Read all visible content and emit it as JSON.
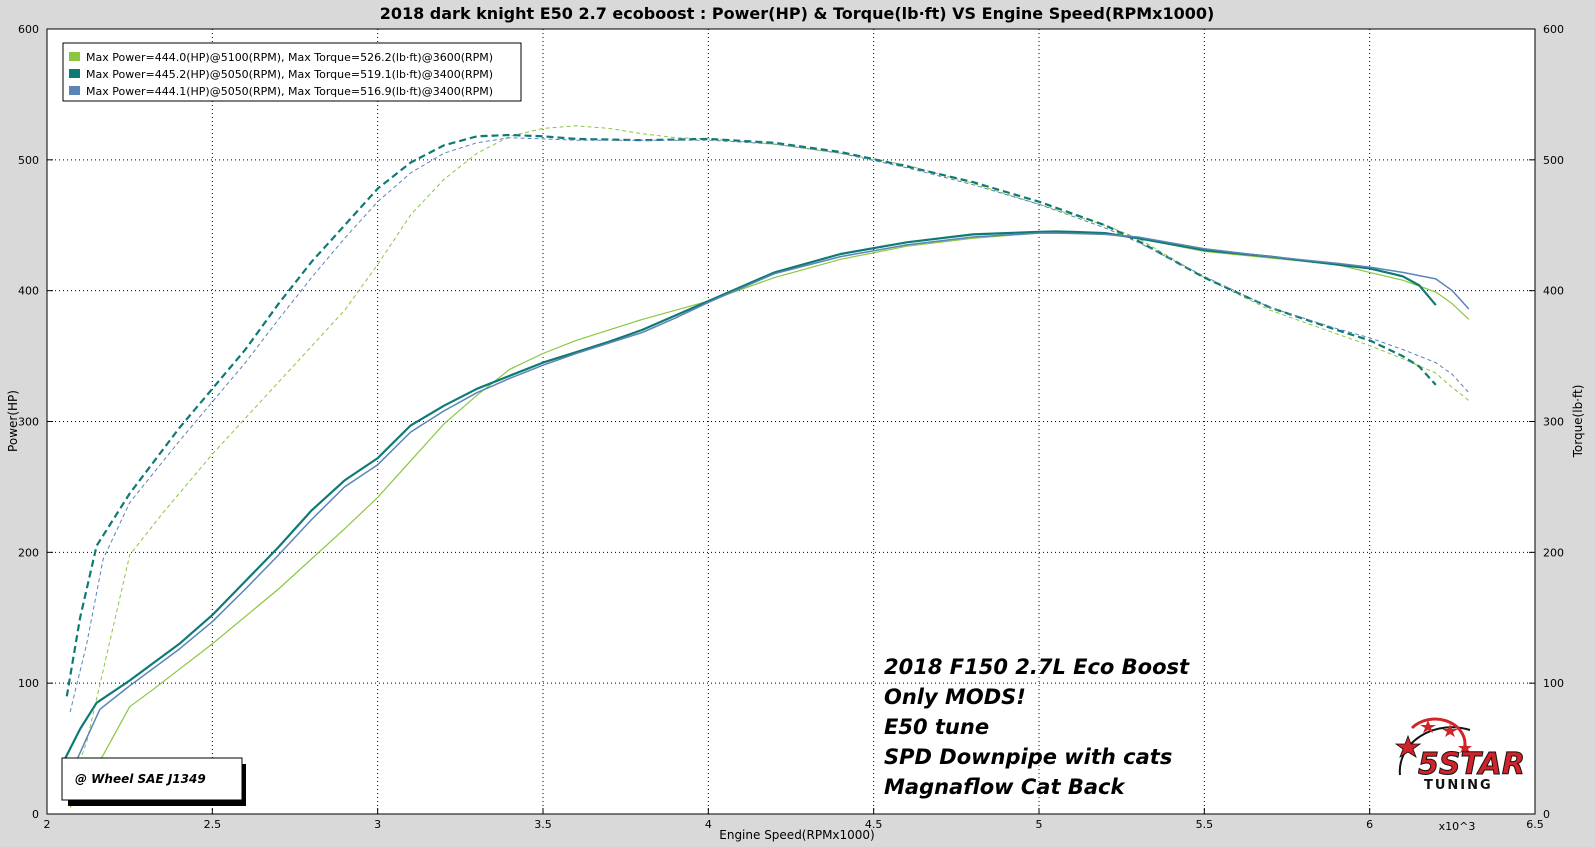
{
  "chart_data": {
    "type": "line",
    "title": "2018 dark knight E50 2.7 ecoboost : Power(HP) & Torque(lb·ft) VS Engine Speed(RPMx1000)",
    "xlabel": "Engine Speed(RPMx1000)",
    "x_multiplier_label": "x10^3",
    "ylabel_left": "Power(HP)",
    "ylabel_right": "Torque(lb·ft)",
    "xlim": [
      2,
      6.5
    ],
    "ylim": [
      0,
      600
    ],
    "x_ticks": [
      "2",
      "2.5",
      "3",
      "3.5",
      "4",
      "4.5",
      "5",
      "5.5",
      "6",
      "6.5"
    ],
    "y_ticks": [
      "0",
      "100",
      "200",
      "300",
      "400",
      "500",
      "600"
    ],
    "grid": true,
    "legend_position": "top-left",
    "series": [
      {
        "name": "Max Power=444.0(HP)@5100(RPM), Max Torque=526.2(lb·ft)@3600(RPM)",
        "color": "#8cc63f",
        "power": {
          "x": [
            2.07,
            2.12,
            2.17,
            2.25,
            2.32,
            2.5,
            2.7,
            2.9,
            3.0,
            3.1,
            3.2,
            3.3,
            3.4,
            3.5,
            3.6,
            3.7,
            3.8,
            3.9,
            4.0,
            4.2,
            4.4,
            4.6,
            4.8,
            5.0,
            5.1,
            5.2,
            5.3,
            5.5,
            5.7,
            5.9,
            6.0,
            6.1,
            6.2,
            6.25,
            6.3
          ],
          "y": [
            5,
            25,
            45,
            82,
            95,
            130,
            172,
            218,
            242,
            270,
            298,
            320,
            340,
            352,
            362,
            370,
            378,
            385,
            392,
            410,
            424,
            434,
            440,
            444,
            444,
            443,
            440,
            430,
            425,
            420,
            414,
            408,
            399,
            390,
            378
          ]
        },
        "torque": {
          "x": [
            2.07,
            2.12,
            2.17,
            2.25,
            2.35,
            2.5,
            2.7,
            2.9,
            3.0,
            3.1,
            3.2,
            3.3,
            3.4,
            3.5,
            3.6,
            3.7,
            3.8,
            3.9,
            4.0,
            4.2,
            4.4,
            4.6,
            4.8,
            5.0,
            5.2,
            5.3,
            5.5,
            5.7,
            5.9,
            6.0,
            6.1,
            6.2,
            6.25,
            6.3
          ],
          "y": [
            20,
            55,
            110,
            198,
            230,
            275,
            330,
            385,
            420,
            458,
            485,
            505,
            518,
            524,
            526,
            524,
            520,
            517,
            516,
            512,
            505,
            496,
            482,
            466,
            450,
            440,
            410,
            385,
            367,
            358,
            348,
            337,
            326,
            316
          ]
        }
      },
      {
        "name": "Max Power=445.2(HP)@5050(RPM), Max Torque=519.1(lb·ft)@3400(RPM)",
        "color": "#0e7a74",
        "power": {
          "x": [
            2.05,
            2.1,
            2.15,
            2.25,
            2.4,
            2.5,
            2.6,
            2.7,
            2.8,
            2.9,
            3.0,
            3.1,
            3.2,
            3.3,
            3.4,
            3.5,
            3.6,
            3.7,
            3.8,
            3.9,
            4.0,
            4.2,
            4.4,
            4.6,
            4.8,
            4.9,
            5.0,
            5.05,
            5.1,
            5.2,
            5.3,
            5.5,
            5.7,
            5.9,
            6.0,
            6.1,
            6.15,
            6.2
          ],
          "y": [
            40,
            65,
            85,
            102,
            130,
            152,
            178,
            204,
            232,
            255,
            272,
            297,
            312,
            325,
            335,
            345,
            353,
            361,
            370,
            381,
            392,
            414,
            428,
            437,
            443,
            444,
            445,
            445.2,
            445,
            444,
            440,
            431,
            426,
            420,
            417,
            411,
            404,
            389
          ]
        },
        "torque": {
          "x": [
            2.06,
            2.1,
            2.15,
            2.25,
            2.4,
            2.5,
            2.6,
            2.7,
            2.8,
            2.9,
            3.0,
            3.1,
            3.2,
            3.3,
            3.4,
            3.5,
            3.6,
            3.8,
            4.0,
            4.2,
            4.4,
            4.6,
            4.8,
            5.0,
            5.2,
            5.3,
            5.5,
            5.7,
            5.9,
            6.0,
            6.1,
            6.15,
            6.2
          ],
          "y": [
            90,
            150,
            205,
            245,
            295,
            325,
            355,
            390,
            422,
            450,
            478,
            498,
            511,
            518,
            519,
            518,
            516,
            515,
            516,
            513,
            506,
            495,
            483,
            468,
            450,
            438,
            410,
            387,
            370,
            362,
            350,
            342,
            328
          ]
        }
      },
      {
        "name": "Max Power=444.1(HP)@5050(RPM), Max Torque=516.9(lb·ft)@3400(RPM)",
        "color": "#5b84b8",
        "power": {
          "x": [
            2.07,
            2.12,
            2.16,
            2.25,
            2.4,
            2.5,
            2.6,
            2.7,
            2.8,
            2.9,
            3.0,
            3.1,
            3.2,
            3.3,
            3.4,
            3.5,
            3.6,
            3.7,
            3.8,
            3.9,
            4.0,
            4.2,
            4.4,
            4.6,
            4.8,
            5.0,
            5.05,
            5.2,
            5.3,
            5.5,
            5.7,
            5.9,
            6.0,
            6.1,
            6.2,
            6.25,
            6.3
          ],
          "y": [
            30,
            58,
            80,
            98,
            126,
            147,
            172,
            198,
            225,
            250,
            267,
            292,
            308,
            322,
            333,
            343,
            352,
            360,
            368,
            379,
            391,
            413,
            426,
            435,
            441,
            444,
            444.1,
            443,
            441,
            432,
            426,
            421,
            418,
            414,
            409,
            400,
            386
          ]
        },
        "torque": {
          "x": [
            2.07,
            2.12,
            2.17,
            2.25,
            2.4,
            2.5,
            2.6,
            2.7,
            2.8,
            2.9,
            3.0,
            3.1,
            3.2,
            3.3,
            3.4,
            3.5,
            3.6,
            3.8,
            4.0,
            4.2,
            4.4,
            4.6,
            4.8,
            5.0,
            5.2,
            5.3,
            5.5,
            5.7,
            5.9,
            6.0,
            6.1,
            6.2,
            6.25,
            6.3
          ],
          "y": [
            78,
            130,
            195,
            238,
            285,
            315,
            345,
            378,
            410,
            440,
            468,
            490,
            505,
            513,
            516.9,
            516,
            515,
            515,
            515,
            512,
            505,
            494,
            481,
            466,
            448,
            437,
            411,
            387,
            371,
            364,
            355,
            345,
            336,
            322
          ]
        }
      }
    ],
    "annotations": [
      "2018  F150  2.7L Eco Boost",
      "Only MODS!",
      "E50 tune",
      "SPD Downpipe with cats",
      "Magnaflow Cat Back"
    ],
    "stamp": "@ Wheel SAE J1349",
    "logo": {
      "big": "5STAR",
      "small": "TUNING",
      "color": "#d2232a"
    }
  }
}
